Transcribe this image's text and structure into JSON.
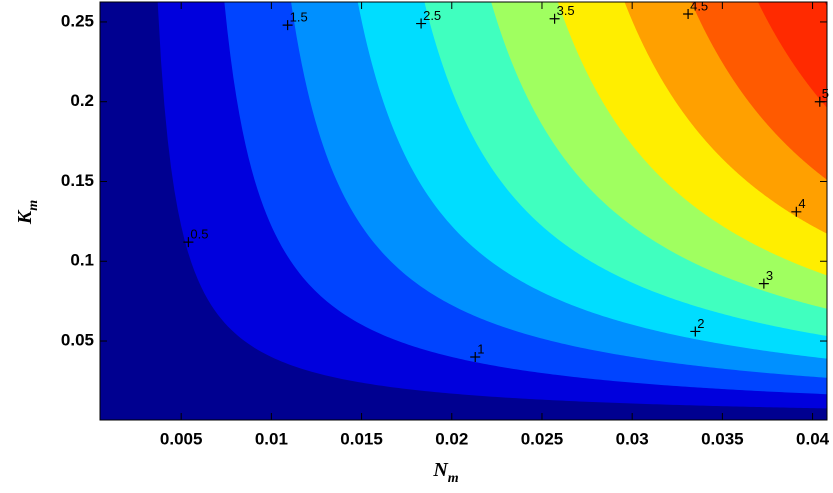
{
  "chart_data": {
    "type": "contourf",
    "x_label": {
      "text": "N",
      "subscript": "m"
    },
    "y_label": {
      "text": "K",
      "subscript": "m"
    },
    "xlim": [
      0.0005,
      0.0408
    ],
    "ylim": [
      0.0005,
      0.2625
    ],
    "xticks": [
      0.005,
      0.01,
      0.015,
      0.02,
      0.025,
      0.03,
      0.035,
      0.04
    ],
    "yticks": [
      0.05,
      0.1,
      0.15,
      0.2,
      0.25
    ],
    "base_color": "#000090",
    "levels": [
      0.5,
      1,
      1.5,
      2,
      2.5,
      3,
      3.5,
      4,
      4.5,
      5,
      5.5
    ],
    "colors": [
      "#0000dd",
      "#0044ff",
      "#0090ff",
      "#00ddff",
      "#40ffbf",
      "#a0ff60",
      "#ffee00",
      "#ffa000",
      "#ff5a00",
      "#ff2a00",
      "#c80000"
    ],
    "contour_labels": [
      {
        "text": 0.5,
        "x": 0.0054,
        "y": 0.112
      },
      {
        "text": 1,
        "x": 0.0213,
        "y": 0.04
      },
      {
        "text": 1.5,
        "x": 0.0109,
        "y": 0.248
      },
      {
        "text": 2,
        "x": 0.0335,
        "y": 0.056
      },
      {
        "text": 2.5,
        "x": 0.0183,
        "y": 0.249
      },
      {
        "text": 3,
        "x": 0.0373,
        "y": 0.086
      },
      {
        "text": 3.5,
        "x": 0.0257,
        "y": 0.252
      },
      {
        "text": 4,
        "x": 0.0391,
        "y": 0.131
      },
      {
        "text": 4.5,
        "x": 0.0331,
        "y": 0.255
      },
      {
        "text": 5,
        "x": 0.0404,
        "y": 0.2
      }
    ]
  }
}
